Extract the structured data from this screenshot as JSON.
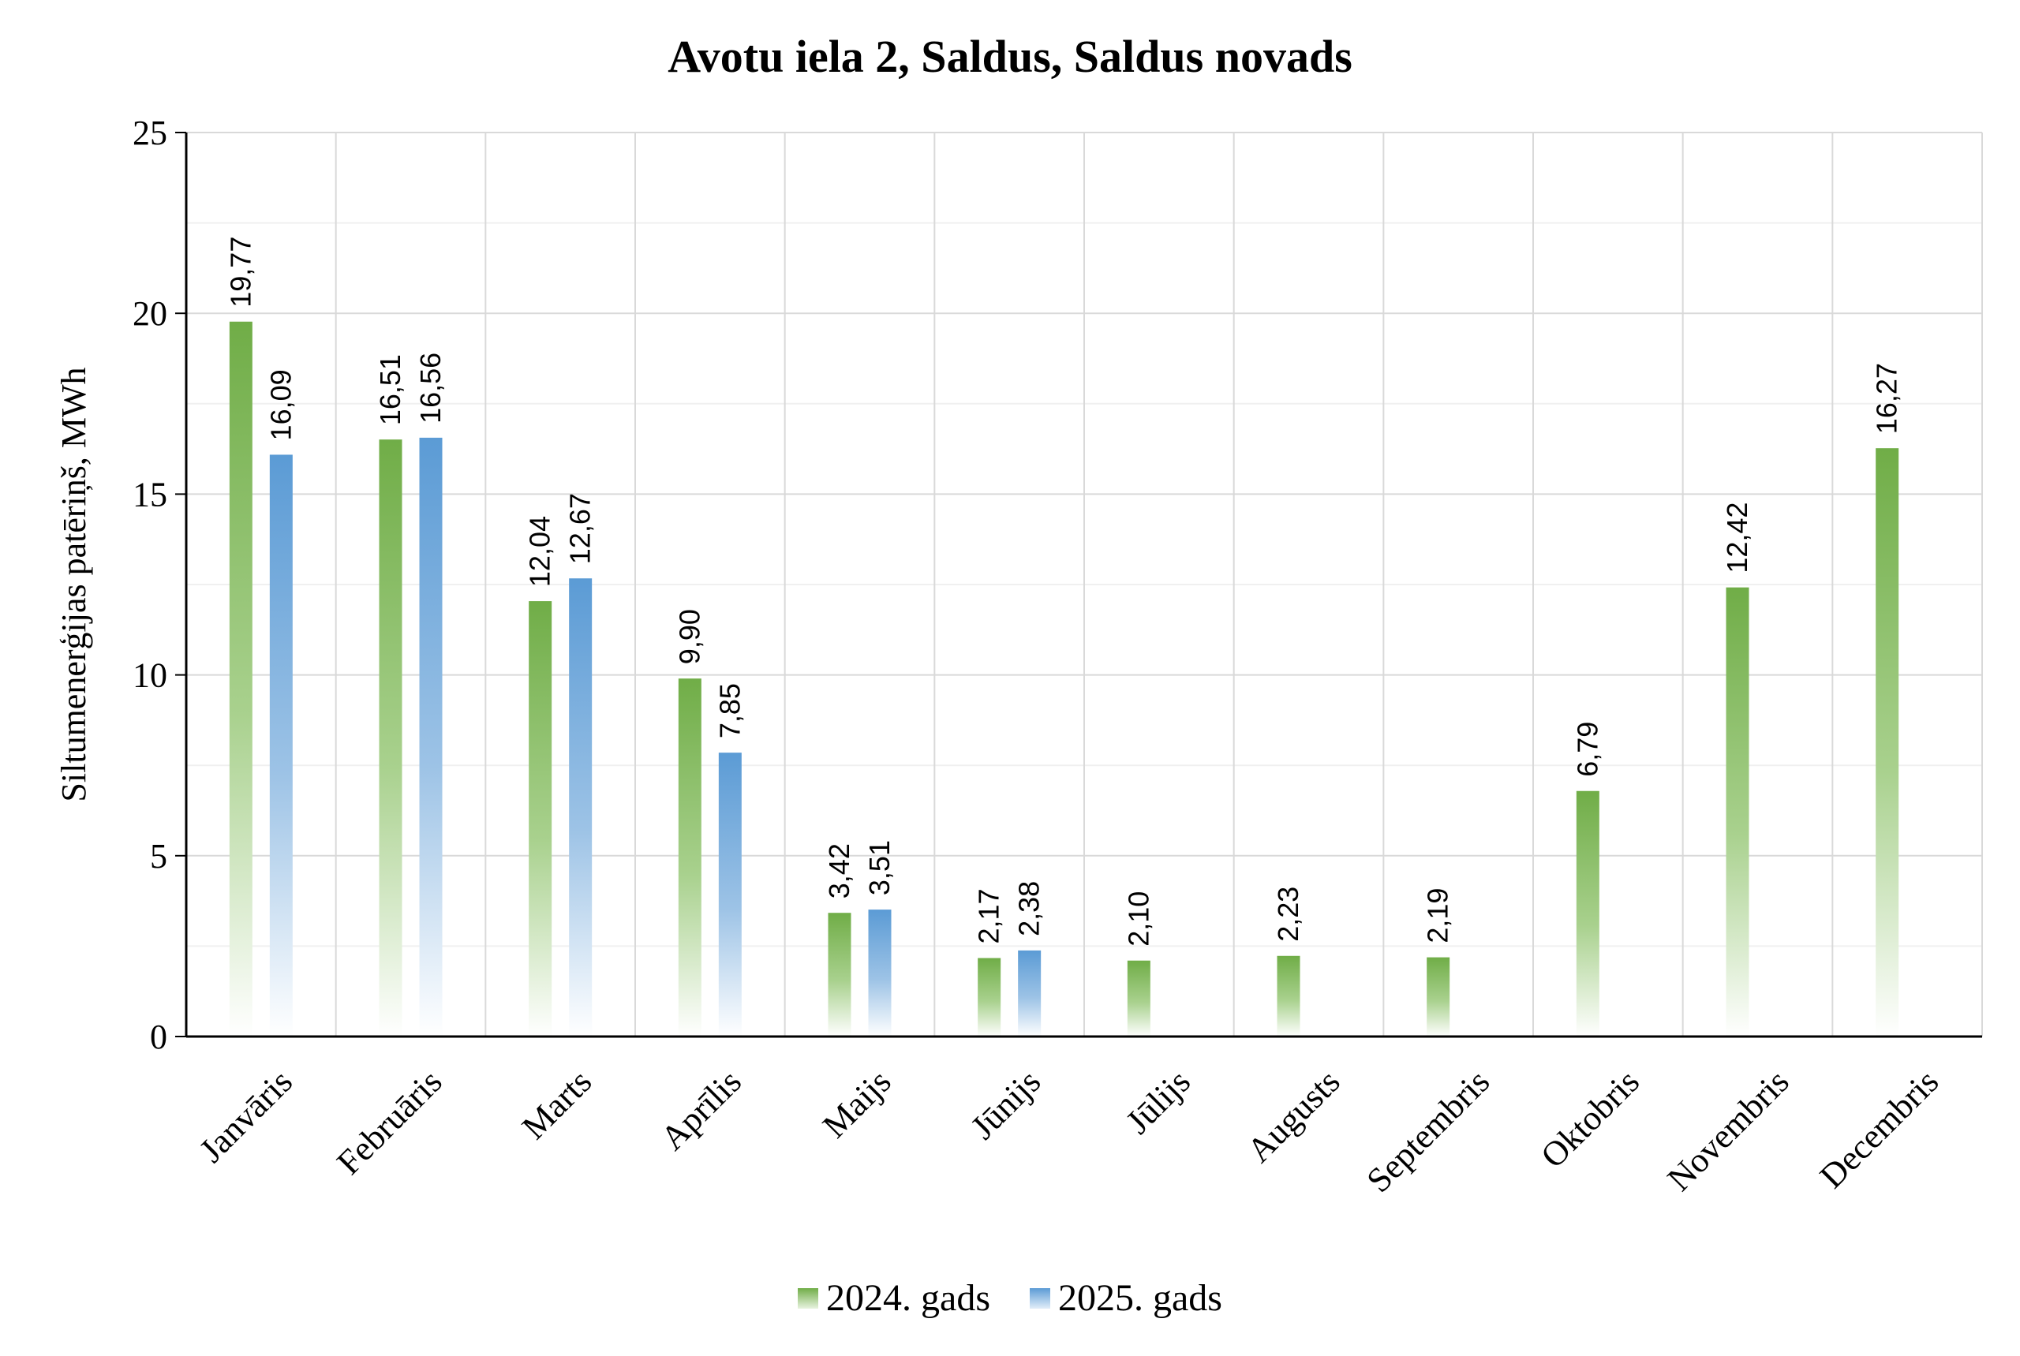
{
  "chart_data": {
    "type": "bar",
    "title": "Avotu iela 2, Saldus, Saldus novads",
    "ylabel": "Siltumenerģijas patēriņš, MWh",
    "xlabel": "",
    "ylim": [
      0,
      25
    ],
    "yticks": [
      "0",
      "5",
      "10",
      "15",
      "20",
      "25"
    ],
    "grid": true,
    "legend_position": "bottom",
    "categories": [
      "Janvāris",
      "Februāris",
      "Marts",
      "Aprīlis",
      "Maijs",
      "Jūnijs",
      "Jūlijs",
      "Augusts",
      "Septembris",
      "Oktobris",
      "Novembris",
      "Decembris"
    ],
    "series": [
      {
        "name": "2024. gads",
        "color": "#70ad47",
        "values": [
          19.77,
          16.51,
          12.04,
          9.9,
          3.42,
          2.17,
          2.1,
          2.23,
          2.19,
          6.79,
          12.42,
          16.27
        ],
        "labels": [
          "19,77",
          "16,51",
          "12,04",
          "9,90",
          "3,42",
          "2,17",
          "2,10",
          "2,23",
          "2,19",
          "6,79",
          "12,42",
          "16,27"
        ]
      },
      {
        "name": "2025. gads",
        "color": "#5b9bd5",
        "values": [
          16.09,
          16.56,
          12.67,
          7.85,
          3.51,
          2.38,
          null,
          null,
          null,
          null,
          null,
          null
        ],
        "labels": [
          "16,09",
          "16,56",
          "12,67",
          "7,85",
          "3,51",
          "2,38",
          "",
          "",
          "",
          "",
          "",
          ""
        ]
      }
    ]
  }
}
